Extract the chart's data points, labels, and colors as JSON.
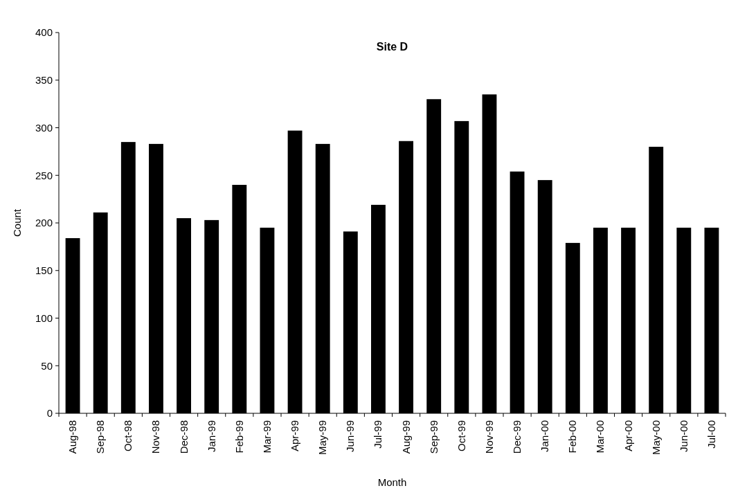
{
  "chart_data": {
    "type": "bar",
    "title": "Site D",
    "xlabel": "Month",
    "ylabel": "Count",
    "categories": [
      "Aug-98",
      "Sep-98",
      "Oct-98",
      "Nov-98",
      "Dec-98",
      "Jan-99",
      "Feb-99",
      "Mar-99",
      "Apr-99",
      "May-99",
      "Jun-99",
      "Jul-99",
      "Aug-99",
      "Sep-99",
      "Oct-99",
      "Nov-99",
      "Dec-99",
      "Jan-00",
      "Feb-00",
      "Mar-00",
      "Apr-00",
      "May-00",
      "Jun-00",
      "Jul-00"
    ],
    "values": [
      184,
      211,
      285,
      283,
      205,
      203,
      240,
      195,
      297,
      283,
      191,
      219,
      286,
      330,
      307,
      335,
      254,
      245,
      179,
      195,
      195,
      280,
      195,
      195
    ],
    "color": "#000000",
    "ylim": [
      0,
      400
    ],
    "yticks": [
      0,
      50,
      100,
      150,
      200,
      250,
      300,
      350,
      400
    ],
    "grid": false
  }
}
